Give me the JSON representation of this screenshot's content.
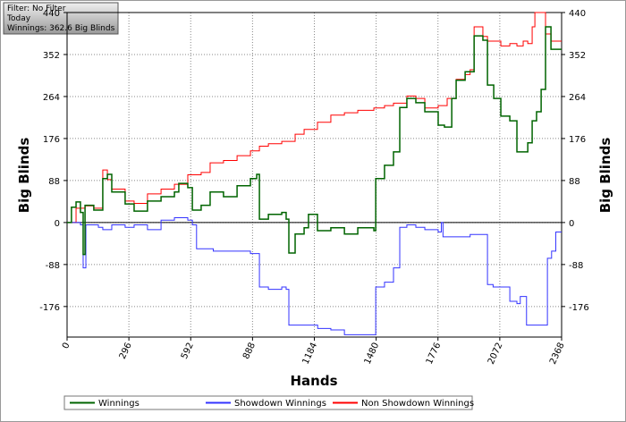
{
  "chart_data": {
    "type": "line",
    "annotations": [
      "Filter: No Filter",
      "Today",
      "Winnings: 362.6 Big Blinds"
    ],
    "x_label": "Hands",
    "y_label": "Big Blinds",
    "xlim": [
      0,
      2368
    ],
    "xticks": [
      0,
      296,
      592,
      888,
      1184,
      1480,
      1776,
      2072,
      2368
    ],
    "ylim": [
      -240,
      440
    ],
    "yticks": [
      -176,
      -88,
      0,
      88,
      176,
      264,
      352,
      440
    ],
    "grid": true,
    "series": [
      {
        "name": "Winnings",
        "color": "#006400",
        "x": [
          0,
          21,
          43,
          64,
          77,
          86,
          128,
          171,
          193,
          214,
          278,
          321,
          385,
          450,
          514,
          535,
          578,
          600,
          642,
          685,
          749,
          814,
          878,
          908,
          921,
          964,
          1028,
          1049,
          1062,
          1092,
          1135,
          1156,
          1199,
          1263,
          1328,
          1392,
          1469,
          1478,
          1520,
          1563,
          1593,
          1627,
          1670,
          1713,
          1777,
          1807,
          1842,
          1863,
          1906,
          1949,
          1991,
          2013,
          2043,
          2077,
          2120,
          2154,
          2184,
          2206,
          2227,
          2248,
          2270,
          2291,
          2317,
          2368
        ],
        "values": [
          0,
          32,
          43,
          21,
          -67,
          36,
          26,
          92,
          101,
          64,
          39,
          24,
          45,
          54,
          64,
          82,
          73,
          26,
          36,
          64,
          54,
          77,
          92,
          101,
          7,
          17,
          21,
          7,
          -64,
          -24,
          -11,
          17,
          -17,
          -11,
          -24,
          -11,
          -17,
          92,
          120,
          148,
          241,
          260,
          251,
          232,
          204,
          200,
          260,
          298,
          316,
          391,
          382,
          288,
          260,
          223,
          213,
          148,
          148,
          167,
          213,
          232,
          279,
          410,
          363,
          363
        ]
      },
      {
        "name": "Showdown Winnings",
        "color": "#3333ff",
        "x": [
          0,
          64,
          77,
          86,
          90,
          150,
          171,
          214,
          278,
          321,
          385,
          450,
          514,
          578,
          600,
          620,
          700,
          814,
          878,
          921,
          964,
          1028,
          1049,
          1062,
          1200,
          1263,
          1328,
          1469,
          1478,
          1520,
          1563,
          1593,
          1627,
          1670,
          1713,
          1777,
          1792,
          1800,
          1870,
          1930,
          1990,
          2013,
          2040,
          2077,
          2120,
          2154,
          2170,
          2200,
          2290,
          2300,
          2320,
          2340,
          2368
        ],
        "values": [
          0,
          -5,
          -95,
          -95,
          -5,
          -10,
          -15,
          -5,
          -10,
          -5,
          -15,
          5,
          10,
          5,
          -5,
          -55,
          -60,
          -60,
          -65,
          -135,
          -140,
          -135,
          -140,
          -215,
          -222,
          -225,
          -235,
          -235,
          -135,
          -125,
          -95,
          -10,
          -5,
          -10,
          -15,
          -20,
          0,
          -30,
          -30,
          -25,
          -25,
          -130,
          -135,
          -135,
          -165,
          -170,
          -155,
          -215,
          -215,
          -75,
          -60,
          -20,
          -20
        ]
      },
      {
        "name": "Non Showdown Winnings",
        "color": "#ff0000",
        "x": [
          0,
          43,
          86,
          128,
          171,
          193,
          214,
          278,
          321,
          385,
          450,
          514,
          578,
          642,
          685,
          749,
          814,
          878,
          921,
          964,
          1028,
          1092,
          1135,
          1199,
          1263,
          1328,
          1392,
          1469,
          1520,
          1563,
          1627,
          1670,
          1713,
          1777,
          1820,
          1863,
          1906,
          1930,
          1949,
          1991,
          2013,
          2077,
          2120,
          2154,
          2184,
          2206,
          2227,
          2240,
          2270,
          2291,
          2317,
          2368
        ],
        "values": [
          0,
          30,
          35,
          30,
          110,
          90,
          70,
          45,
          40,
          60,
          70,
          80,
          100,
          105,
          125,
          130,
          140,
          150,
          160,
          165,
          170,
          185,
          195,
          210,
          225,
          230,
          235,
          240,
          245,
          250,
          265,
          260,
          240,
          245,
          260,
          300,
          310,
          320,
          410,
          390,
          380,
          370,
          375,
          370,
          380,
          375,
          410,
          440,
          440,
          395,
          380,
          380
        ]
      }
    ]
  }
}
